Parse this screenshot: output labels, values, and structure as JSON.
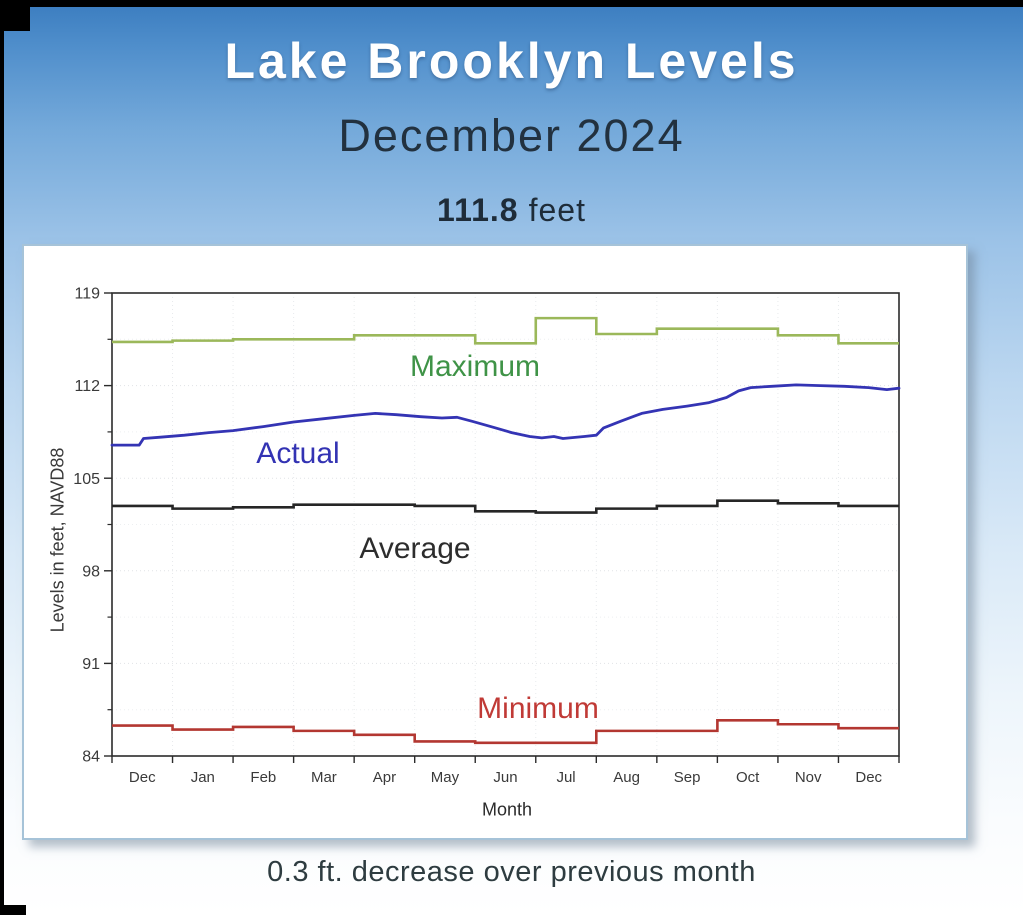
{
  "page": {
    "title": "Lake Brooklyn Levels",
    "subtitle": "December 2024",
    "stat": {
      "value": "111.8",
      "unit": "feet"
    },
    "caption": "0.3 ft. decrease over previous month"
  },
  "colors": {
    "background_top": "#3a7cbf",
    "background_bottom": "#ffffff",
    "title_text": "#ffffff",
    "subtitle_text": "#22313f",
    "panel_border": "#a6c3d8",
    "axis": "#2b2b2b",
    "tick_label": "#3a3a3a",
    "grid": "#d9dde1"
  },
  "chart_data": {
    "type": "line",
    "title": "",
    "xlabel": "Month",
    "ylabel": "Levels in feet, NAVD88",
    "ylim": [
      84,
      119
    ],
    "yticks": [
      119,
      112,
      105,
      98,
      91,
      84
    ],
    "grid": "faint-dotted",
    "legend_position": "inline-labels",
    "categories": [
      "Dec",
      "Jan",
      "Feb",
      "Mar",
      "Apr",
      "May",
      "Jun",
      "Jul",
      "Aug",
      "Sep",
      "Oct",
      "Nov",
      "Dec"
    ],
    "series": [
      {
        "name": "Maximum",
        "style": "monthly-step",
        "color": "#9bb85a",
        "label_color": "#3f9347",
        "values": [
          115.3,
          115.4,
          115.5,
          115.5,
          115.8,
          115.8,
          115.2,
          117.1,
          115.9,
          116.3,
          116.3,
          115.8,
          115.2
        ]
      },
      {
        "name": "Actual",
        "style": "daily-line",
        "color": "#3434b4",
        "label_color": "#3333b3",
        "points": [
          [
            0,
            107.5
          ],
          [
            0.45,
            107.5
          ],
          [
            0.52,
            108.0
          ],
          [
            0.8,
            108.1
          ],
          [
            1.2,
            108.25
          ],
          [
            1.6,
            108.45
          ],
          [
            2.0,
            108.6
          ],
          [
            2.5,
            108.9
          ],
          [
            3.0,
            109.25
          ],
          [
            3.5,
            109.5
          ],
          [
            4.0,
            109.75
          ],
          [
            4.35,
            109.9
          ],
          [
            4.7,
            109.8
          ],
          [
            5.1,
            109.65
          ],
          [
            5.45,
            109.55
          ],
          [
            5.7,
            109.6
          ],
          [
            5.95,
            109.3
          ],
          [
            6.3,
            108.85
          ],
          [
            6.6,
            108.45
          ],
          [
            6.9,
            108.15
          ],
          [
            7.1,
            108.05
          ],
          [
            7.3,
            108.15
          ],
          [
            7.45,
            108.0
          ],
          [
            7.8,
            108.15
          ],
          [
            8.0,
            108.25
          ],
          [
            8.12,
            108.8
          ],
          [
            8.4,
            109.3
          ],
          [
            8.75,
            109.9
          ],
          [
            9.1,
            110.2
          ],
          [
            9.5,
            110.45
          ],
          [
            9.85,
            110.7
          ],
          [
            10.15,
            111.1
          ],
          [
            10.35,
            111.6
          ],
          [
            10.55,
            111.85
          ],
          [
            10.9,
            111.95
          ],
          [
            11.3,
            112.05
          ],
          [
            11.7,
            112.0
          ],
          [
            12.1,
            111.95
          ],
          [
            12.5,
            111.85
          ],
          [
            12.8,
            111.7
          ],
          [
            13,
            111.8
          ]
        ]
      },
      {
        "name": "Average",
        "style": "monthly-step",
        "color": "#262626",
        "label_color": "#2d2d2d",
        "values": [
          102.9,
          102.7,
          102.8,
          103.0,
          103.0,
          102.9,
          102.5,
          102.4,
          102.7,
          102.9,
          103.3,
          103.1,
          102.9
        ]
      },
      {
        "name": "Minimum",
        "style": "monthly-step",
        "color": "#b33731",
        "label_color": "#c03a36",
        "values": [
          86.3,
          86.0,
          86.2,
          85.9,
          85.6,
          85.1,
          85.0,
          85.0,
          85.9,
          85.9,
          86.7,
          86.4,
          86.1
        ]
      }
    ]
  }
}
